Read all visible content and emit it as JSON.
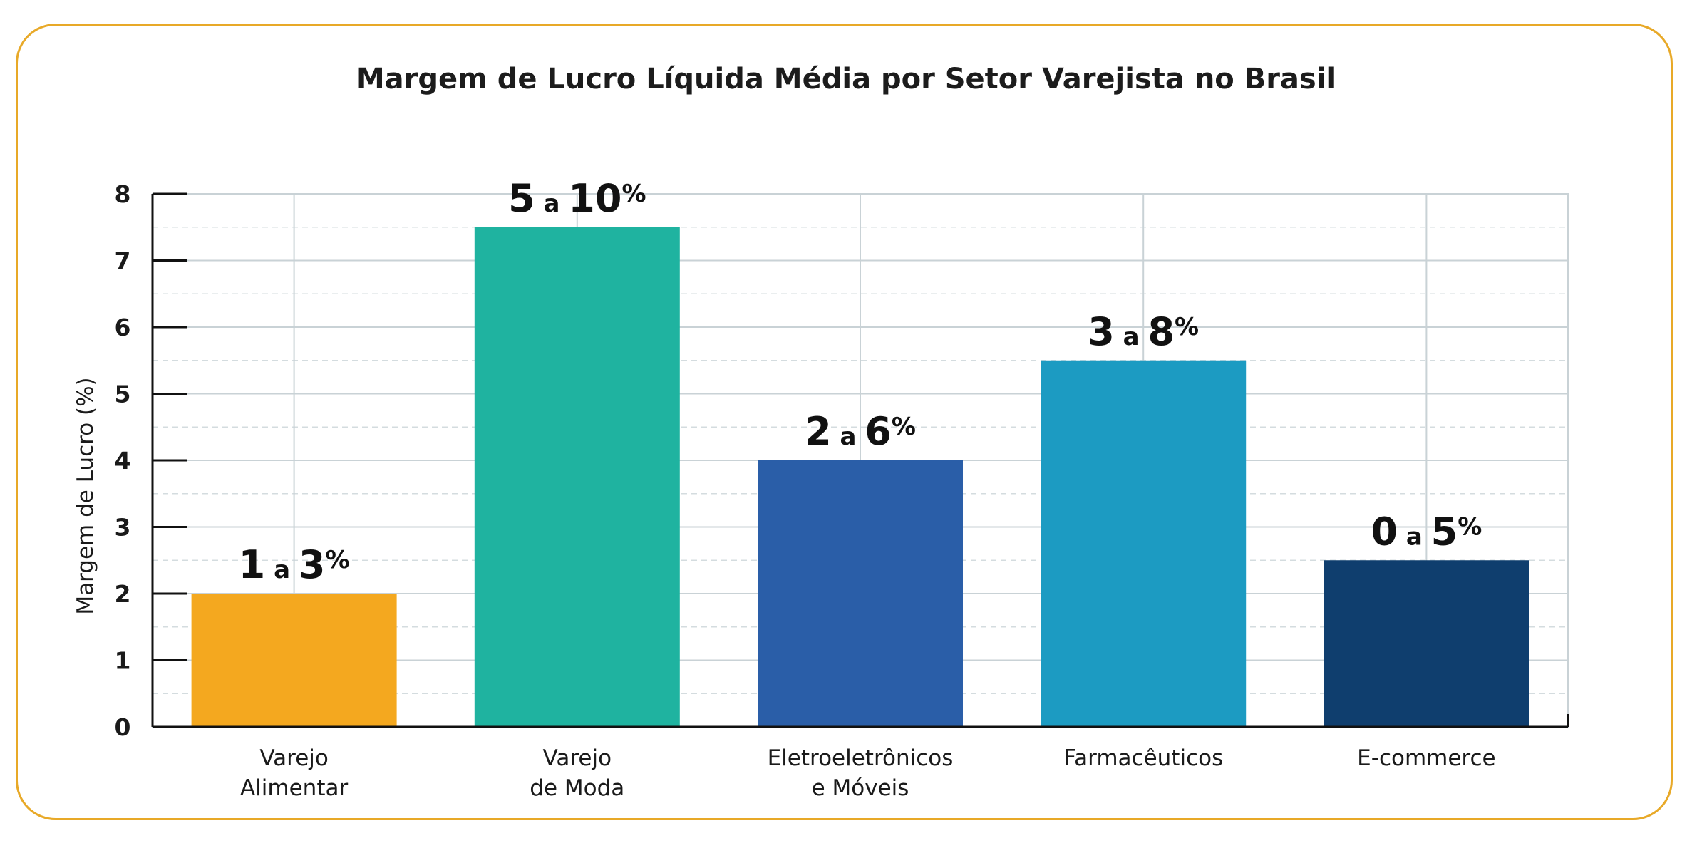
{
  "chart_data": {
    "type": "bar",
    "title": "Margem de Lucro Líquida Média por Setor Varejista no Brasil",
    "xlabel": "",
    "ylabel": "Margem de Lucro (%)",
    "ylim": [
      0,
      8
    ],
    "yticks": [
      0,
      1,
      2,
      3,
      4,
      5,
      6,
      7,
      8
    ],
    "grid": true,
    "categories": [
      [
        "Varejo",
        "Alimentar"
      ],
      [
        "Varejo",
        "de Moda"
      ],
      [
        "Eletroeletrônicos",
        "e Móveis"
      ],
      [
        "Farmacêuticos"
      ],
      [
        "E-commerce"
      ]
    ],
    "values": [
      2,
      7.5,
      4,
      5.5,
      2.5
    ],
    "data_labels": [
      {
        "low": "1",
        "sep": "a",
        "high": "3",
        "unit": "%"
      },
      {
        "low": "5",
        "sep": "a",
        "high": "10",
        "unit": "%"
      },
      {
        "low": "2",
        "sep": "a",
        "high": "6",
        "unit": "%"
      },
      {
        "low": "3",
        "sep": "a",
        "high": "8",
        "unit": "%"
      },
      {
        "low": "0",
        "sep": "a",
        "high": "5",
        "unit": "%"
      }
    ],
    "colors": [
      "#f4a81f",
      "#1fb3a0",
      "#2a5ea8",
      "#1c9bc2",
      "#0f3e6e"
    ]
  }
}
